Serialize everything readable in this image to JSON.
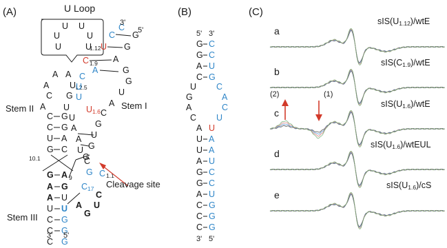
{
  "panels": {
    "a": "(A)",
    "b": "(B)",
    "c": "(C)"
  },
  "panel_a": {
    "u_loop_title": "U Loop",
    "u_loop_letters": [
      "U",
      "U",
      "U",
      "U",
      "U",
      "U"
    ],
    "stem_labels": {
      "stem1": "Stem I",
      "stem2": "Stem II",
      "stem3": "Stem III"
    },
    "cleavage_label": "Cleavage site",
    "number_labels": {
      "u_l25": "U",
      "u_l25_sub": "L2.5",
      "n101": "10.1",
      "n112": "1.12",
      "c19": "1.9",
      "u16": "1.6",
      "c11": "1.1",
      "c17": "17",
      "a9": "9"
    },
    "ends": {
      "three_top": "3'",
      "five_top": "5'",
      "three_bottom": "3'",
      "five_bottom": "5'"
    }
  },
  "panel_b": {
    "ends": {
      "five_top": "5'",
      "three_top": "3'",
      "three_bottom": "3'",
      "five_bottom": "5'"
    }
  },
  "panel_c": {
    "traces": [
      {
        "letter": "a",
        "label_main": "sIS(U",
        "label_sub": "1.12",
        "label_tail": ")/wtE"
      },
      {
        "letter": "b",
        "label_main": "sIS(C",
        "label_sub": "1.9",
        "label_tail": ")/wtE"
      },
      {
        "letter": "c",
        "label_main": "sIS(U",
        "label_sub": "1.6",
        "label_tail": ")/wtE"
      },
      {
        "letter": "d",
        "label_main": "sIS(U",
        "label_sub": "1.6",
        "label_tail": ")/wtEUL"
      },
      {
        "letter": "e",
        "label_main": "sIS(U",
        "label_sub": "1.6",
        "label_tail": ")/cS"
      }
    ],
    "markers": {
      "m1": "(1)",
      "m2": "(2)"
    },
    "colors": {
      "trace1": "#3a3a3a",
      "trace2": "#4a8fd0",
      "trace3": "#d06a6a",
      "trace4": "#6aa86a",
      "trace5": "#a07ac0"
    }
  },
  "colors": {
    "black": "#1a1a1a",
    "blue": "#2f86c8",
    "red": "#d23a2a"
  }
}
